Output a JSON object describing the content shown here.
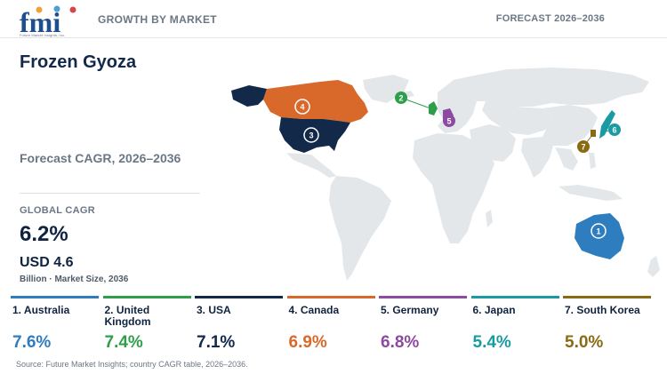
{
  "header": {
    "logo_text": "fmi",
    "logo_subtext": "Future Market Insights, Inc.",
    "left_label": "GROWTH BY MARKET",
    "right_label": "FORECAST 2026–2036"
  },
  "summary": {
    "title": "Frozen Gyoza",
    "cagr_label": "Forecast CAGR, 2026–2036",
    "global_label": "GLOBAL CAGR",
    "global_value": "6.2%",
    "market_size": "USD 4.6",
    "market_note": "Billion · Market Size, 2036"
  },
  "colors": {
    "australia": "#2d7dbf",
    "united_kingdom": "#2f9e4a",
    "usa": "#12294a",
    "canada": "#d9692a",
    "germany": "#8c4aa0",
    "japan": "#1a9aa3",
    "south_korea": "#8a6b14",
    "land": "#e4e7ea"
  },
  "chart_data": {
    "type": "map",
    "metric": "Forecast CAGR, 2026–2036",
    "countries": [
      {
        "rank": 1,
        "label": "1. Australia",
        "value": 7.6,
        "display": "7.6%",
        "color": "#2d7dbf"
      },
      {
        "rank": 2,
        "label": "2. United Kingdom",
        "value": 7.4,
        "display": "7.4%",
        "color": "#2f9e4a"
      },
      {
        "rank": 3,
        "label": "3. USA",
        "value": 7.1,
        "display": "7.1%",
        "color": "#12294a"
      },
      {
        "rank": 4,
        "label": "4. Canada",
        "value": 6.9,
        "display": "6.9%",
        "color": "#d9692a"
      },
      {
        "rank": 5,
        "label": "5. Germany",
        "value": 6.8,
        "display": "6.8%",
        "color": "#8c4aa0"
      },
      {
        "rank": 6,
        "label": "6. Japan",
        "value": 5.4,
        "display": "5.4%",
        "color": "#1a9aa3"
      },
      {
        "rank": 7,
        "label": "7. South Korea",
        "value": 5.0,
        "display": "5.0%",
        "color": "#8a6b14"
      }
    ]
  },
  "map_markers": {
    "australia": "1",
    "united_kingdom": "2",
    "usa": "3",
    "canada": "4",
    "germany": "5",
    "japan": "6",
    "south_korea": "7"
  },
  "footer": {
    "source": "Source: Future Market Insights; country CAGR table, 2026–2036."
  }
}
